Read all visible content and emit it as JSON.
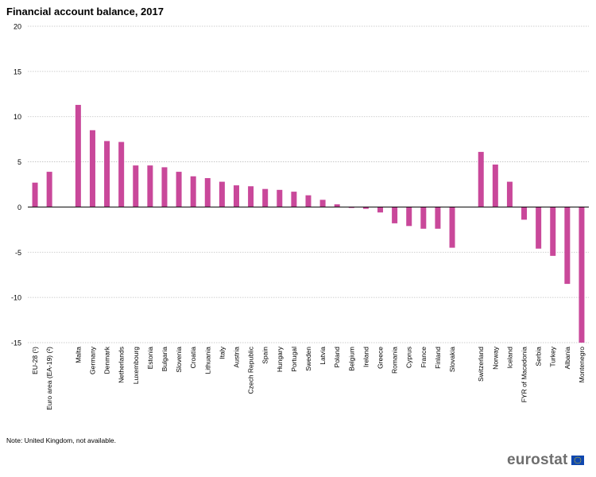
{
  "header": {
    "title": "Financial account balance, 2017"
  },
  "footer": {
    "note": "Note: United Kingdom, not available.",
    "logo_text": "eurostat"
  },
  "colors": {
    "bar": "#c9489a",
    "grid": "#bfbfbf",
    "axis": "#000000"
  },
  "chart_data": {
    "type": "bar",
    "title": "Financial account balance, 2017",
    "xlabel": "",
    "ylabel": "",
    "ylim": [
      -15,
      20
    ],
    "yticks": [
      -15,
      -10,
      -5,
      0,
      5,
      10,
      15,
      20
    ],
    "grid": true,
    "categories": [
      "EU-28 (¹)",
      "Euro area (EA-19) (²)",
      "",
      "Malta",
      "Germany",
      "Denmark",
      "Netherlands",
      "Luxembourg",
      "Estonia",
      "Bulgaria",
      "Slovenia",
      "Croatia",
      "Lithuania",
      "Italy",
      "Austria",
      "Czech Republic",
      "Spain",
      "Hungary",
      "Portugal",
      "Sweden",
      "Latvia",
      "Poland",
      "Belgium",
      "Ireland",
      "Greece",
      "Romania",
      "Cyprus",
      "France",
      "Finland",
      "Slovakia",
      "",
      "Switzerland",
      "Norway",
      "Iceland",
      "FYR of Macedonia",
      "Serbia",
      "Turkey",
      "Albania",
      "Montenegro"
    ],
    "values": [
      2.7,
      3.9,
      null,
      11.3,
      8.5,
      7.3,
      7.2,
      4.6,
      4.6,
      4.4,
      3.9,
      3.4,
      3.2,
      2.8,
      2.4,
      2.3,
      2.0,
      1.9,
      1.7,
      1.3,
      0.8,
      0.3,
      -0.1,
      -0.2,
      -0.6,
      -1.8,
      -2.1,
      -2.4,
      -2.4,
      -4.5,
      null,
      6.1,
      4.7,
      2.8,
      -1.4,
      -4.6,
      -5.4,
      -8.5,
      -15.0
    ]
  }
}
